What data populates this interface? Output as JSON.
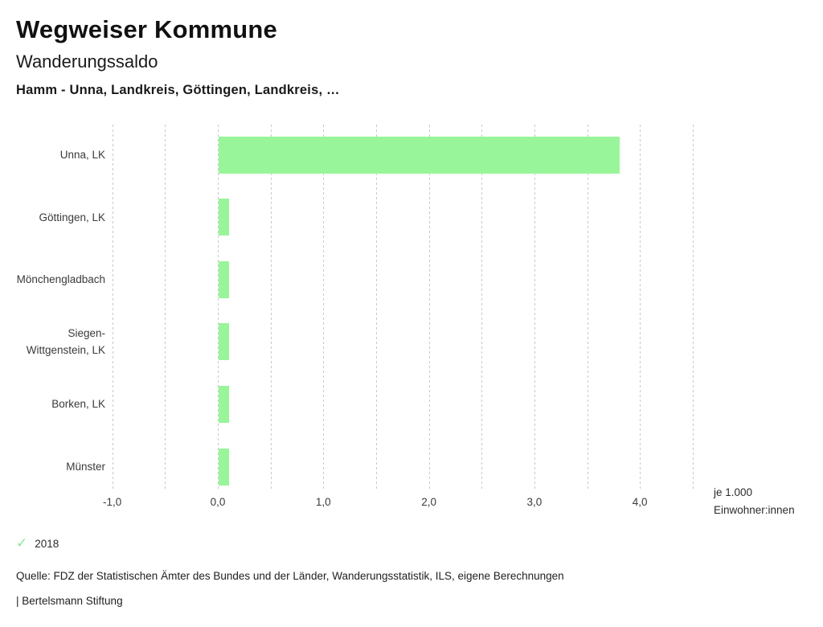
{
  "header": {
    "title": "Wegweiser Kommune",
    "subtitle": "Wanderungssaldo",
    "selection": "Hamm - Unna, Landkreis, Göttingen, Landkreis, …"
  },
  "chart_data": {
    "type": "bar",
    "orientation": "horizontal",
    "title": "Wanderungssaldo",
    "categories": [
      "Unna, LK",
      "Göttingen, LK",
      "Mönchengladbach",
      "Siegen-Wittgenstein, LK",
      "Borken, LK",
      "Münster"
    ],
    "series": [
      {
        "name": "2018",
        "values": [
          3.8,
          0.1,
          0.1,
          0.1,
          0.1,
          0.1
        ]
      }
    ],
    "xlim": [
      -1.0,
      4.5
    ],
    "grid": {
      "min": -1.0,
      "max": 4.5,
      "step": 0.5,
      "style": "dashed",
      "enabled": true
    },
    "tick_values": [
      -1,
      0,
      1,
      2,
      3,
      4
    ],
    "tick_labels": [
      "-1,0",
      "0,0",
      "1,0",
      "2,0",
      "3,0",
      "4,0"
    ],
    "unit_note_lines": [
      "je 1.000",
      "Einwohner:innen"
    ],
    "bar_color": "#99f599",
    "gridline_color": "#c9c9c9",
    "legend_position": "bottom-left"
  },
  "legend": {
    "items": [
      {
        "label": "2018",
        "icon": "check"
      }
    ],
    "check_color": "#8ce68c",
    "check_glyph": "✓"
  },
  "footer": {
    "source": "Quelle: FDZ der Statistischen Ämter des Bundes und der Länder, Wanderungsstatistik, ILS, eigene Berechnungen",
    "branding": "| Bertelsmann Stiftung"
  }
}
